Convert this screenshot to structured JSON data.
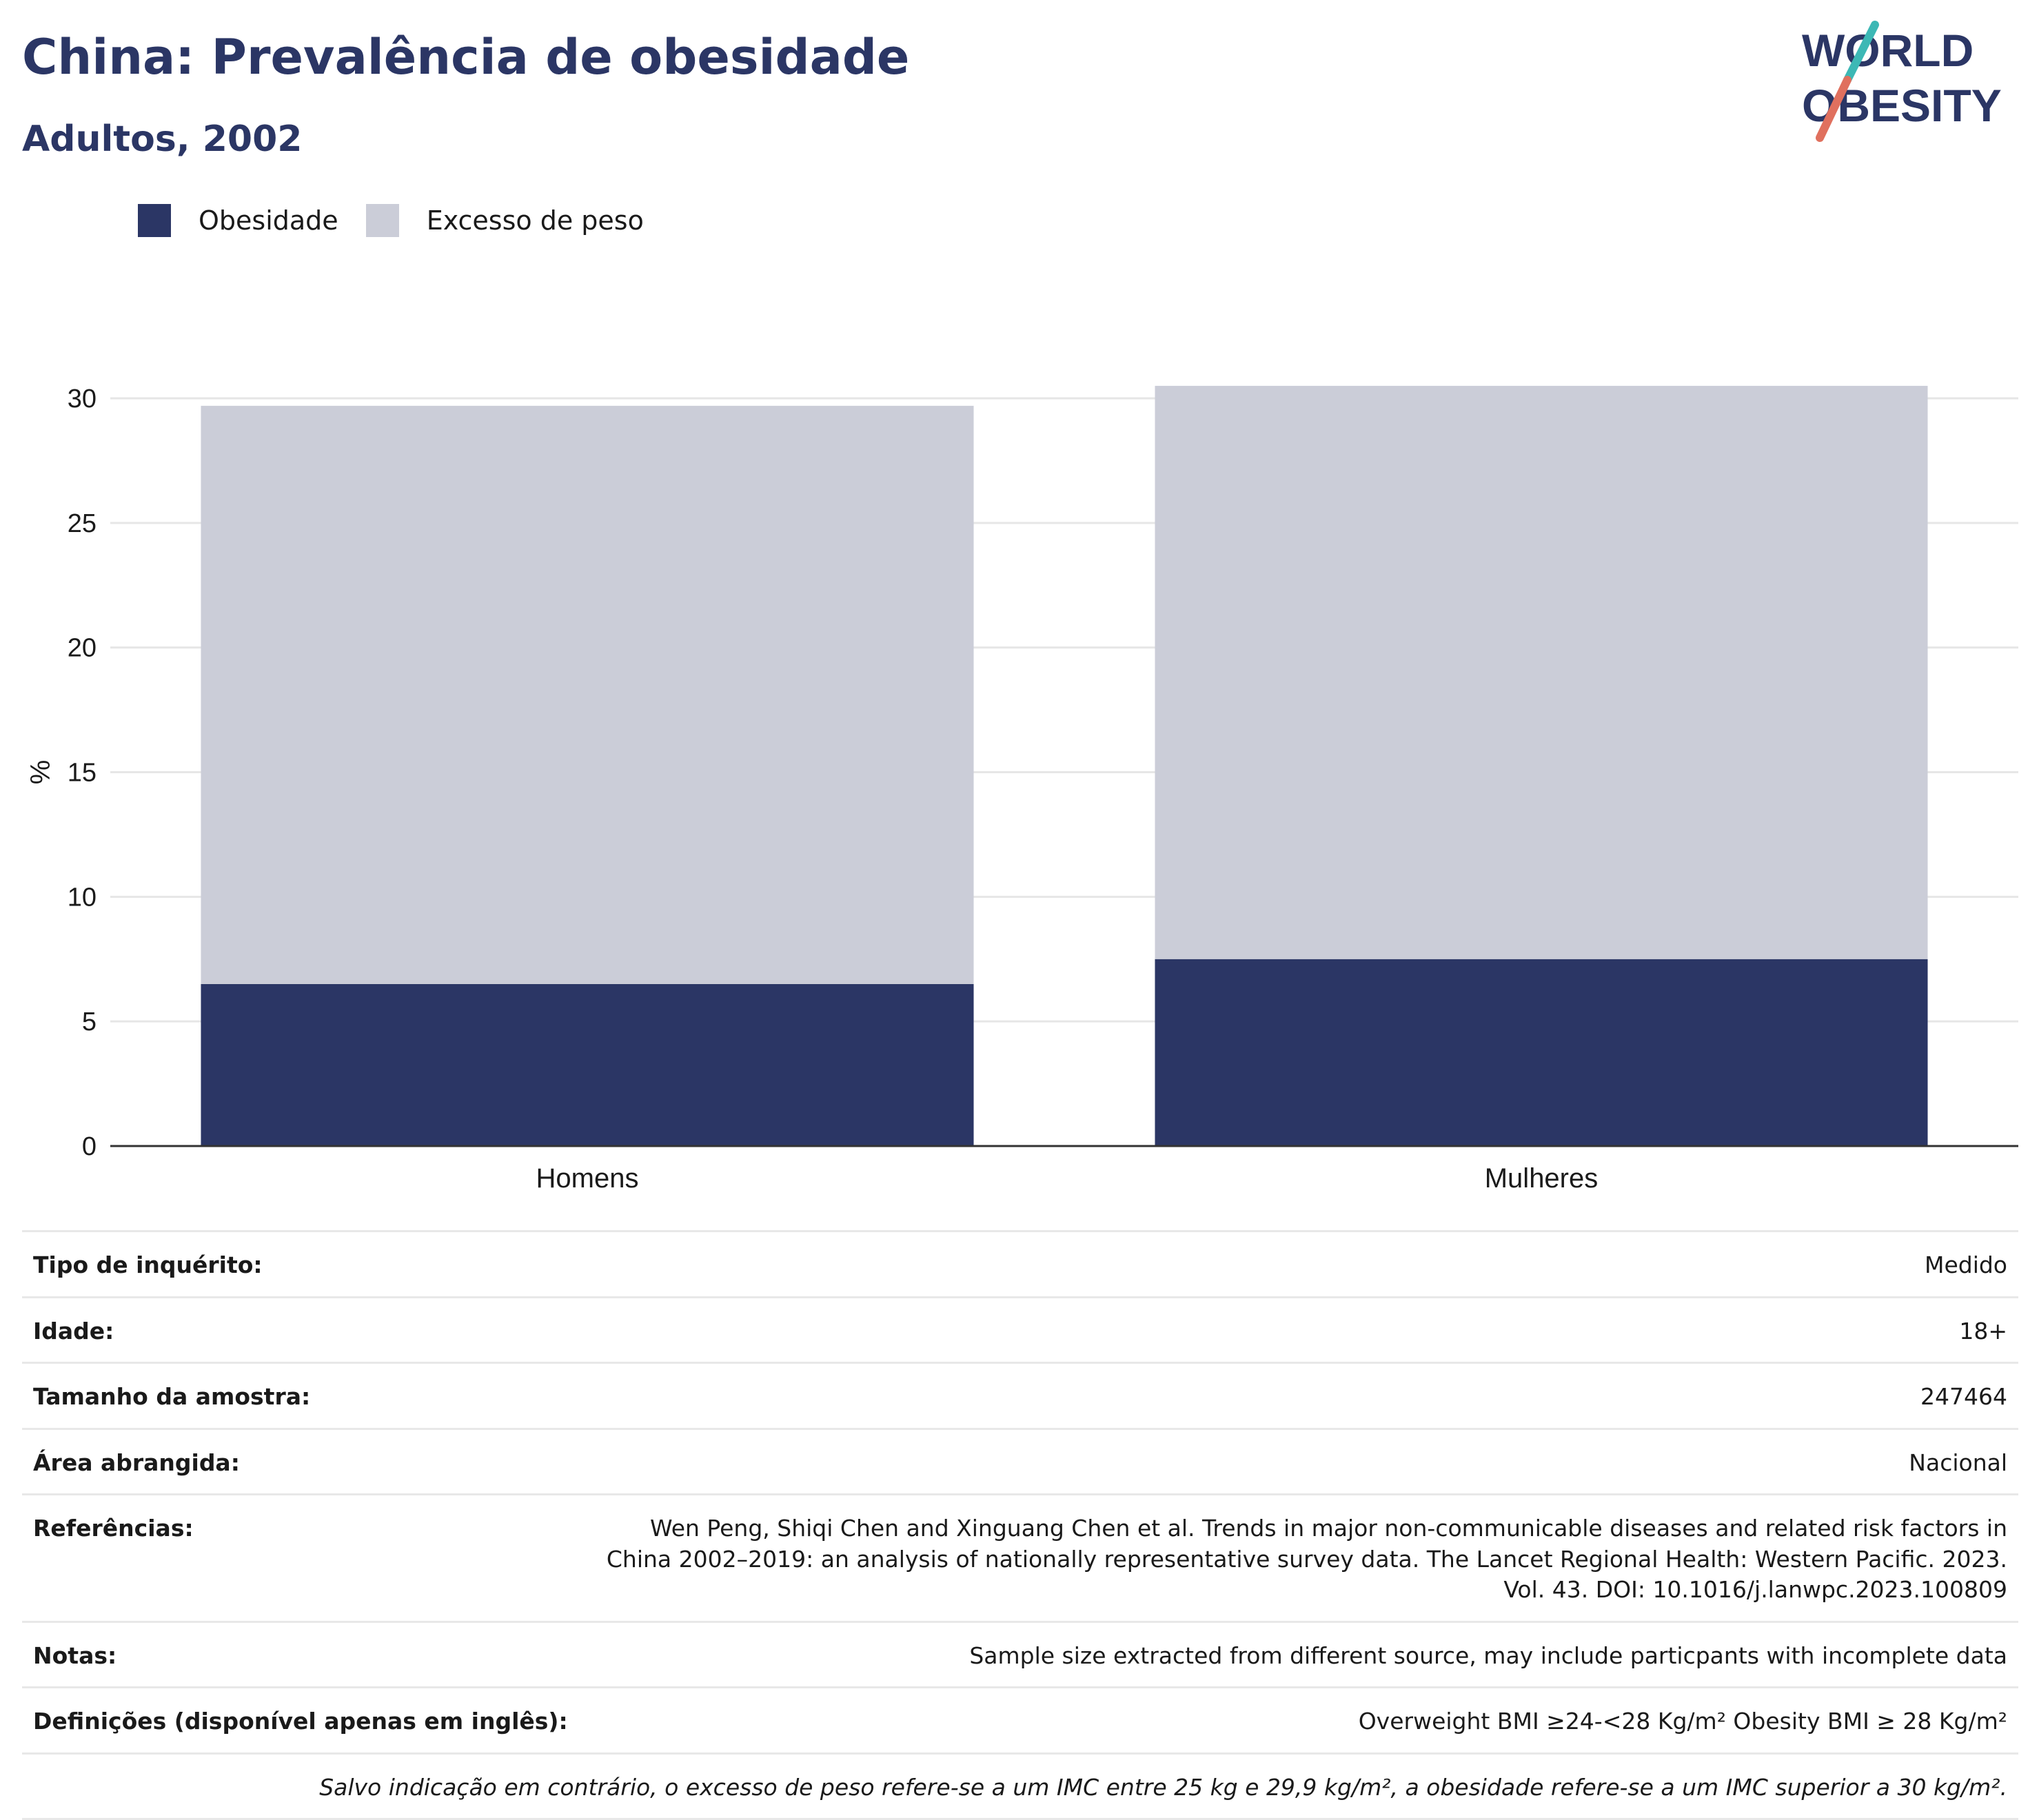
{
  "header": {
    "title": "China: Prevalência de obesidade",
    "subtitle": "Adultos, 2002"
  },
  "logo": {
    "line1": "WORLD",
    "line2": "OBESITY"
  },
  "colors": {
    "obesity": "#2b3665",
    "overweight": "#cbcdd8",
    "accent_teal": "#3cb8b5",
    "accent_coral": "#e0705e"
  },
  "chart_data": {
    "type": "bar",
    "stacked": true,
    "categories": [
      "Homens",
      "Mulheres"
    ],
    "series": [
      {
        "name": "Obesidade",
        "values": [
          6.5,
          7.5
        ]
      },
      {
        "name": "Excesso de peso",
        "values": [
          23.2,
          23.0
        ]
      }
    ],
    "ylabel": "%",
    "xlabel": "",
    "ylim": [
      0,
      30
    ],
    "yticks": [
      0,
      5,
      10,
      15,
      20,
      25,
      30
    ],
    "grid": true,
    "legend": "top-left"
  },
  "info": {
    "rows": [
      {
        "label": "Tipo de inquérito:",
        "value": "Medido"
      },
      {
        "label": "Idade:",
        "value": "18+"
      },
      {
        "label": "Tamanho da amostra:",
        "value": "247464"
      },
      {
        "label": "Área abrangida:",
        "value": "Nacional"
      },
      {
        "label": "Referências:",
        "value": "Wen Peng, Shiqi Chen and Xinguang Chen et al. Trends in major non-communicable diseases and related risk factors in China 2002–2019: an analysis of nationally representative survey data. The Lancet Regional Health: Western Pacific. 2023. Vol. 43. DOI: 10.1016/j.lanwpc.2023.100809"
      },
      {
        "label": "Notas:",
        "value": "Sample size extracted from different source, may include particpants with incomplete data"
      },
      {
        "label": "Definições (disponível apenas em inglês):",
        "value": "Overweight BMI ≥24-<28 Kg/m² Obesity BMI ≥ 28 Kg/m²"
      }
    ],
    "footnote": "Salvo indicação em contrário, o excesso de peso refere-se a um IMC entre 25 kg e 29,9 kg/m², a obesidade refere-se a um IMC superior a 30 kg/m²."
  }
}
